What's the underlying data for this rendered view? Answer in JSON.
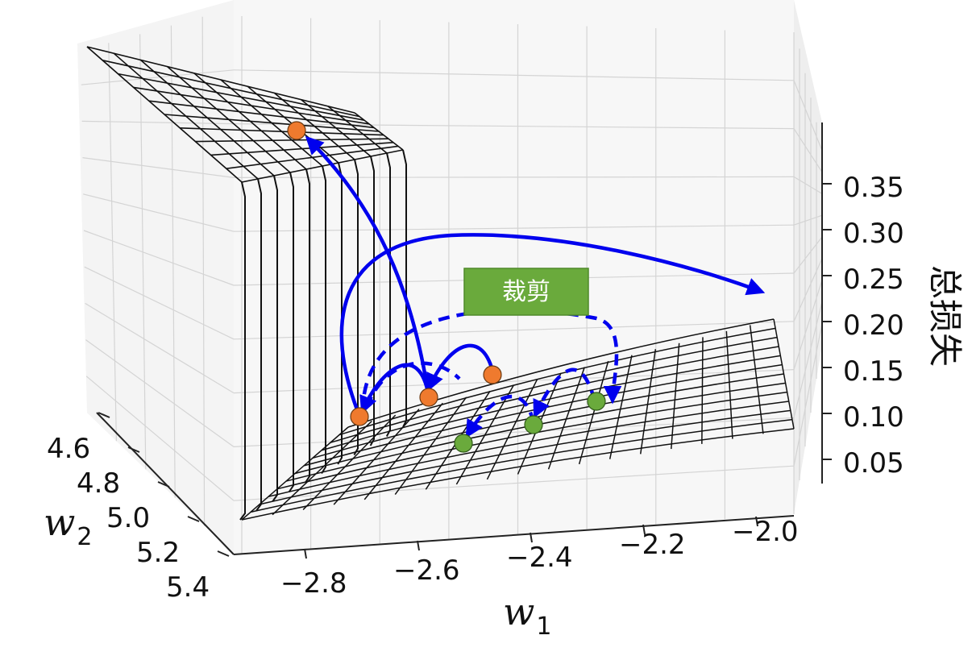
{
  "chart_data": {
    "type": "surface3d",
    "x_axis": {
      "label": "w",
      "subscript": "1",
      "ticks": [
        "−2.8",
        "−2.6",
        "−2.4",
        "−2.2",
        "−2.0"
      ]
    },
    "y_axis": {
      "label": "w",
      "subscript": "2",
      "ticks": [
        "4.6",
        "4.8",
        "5.0",
        "5.2",
        "5.4"
      ]
    },
    "z_axis": {
      "label": "总损失",
      "ticks": [
        "0.35",
        "0.30",
        "0.25",
        "0.20",
        "0.15",
        "0.10",
        "0.05"
      ]
    },
    "grid": true,
    "annotation": {
      "label": "裁剪",
      "color": "#6aaa3c"
    },
    "trajectories": [
      {
        "style": "solid",
        "color": "#0000ee",
        "point_color": "#ef7a2e"
      },
      {
        "style": "dashed",
        "color": "#0000ee",
        "point_color": "#6aaa3c"
      }
    ]
  }
}
